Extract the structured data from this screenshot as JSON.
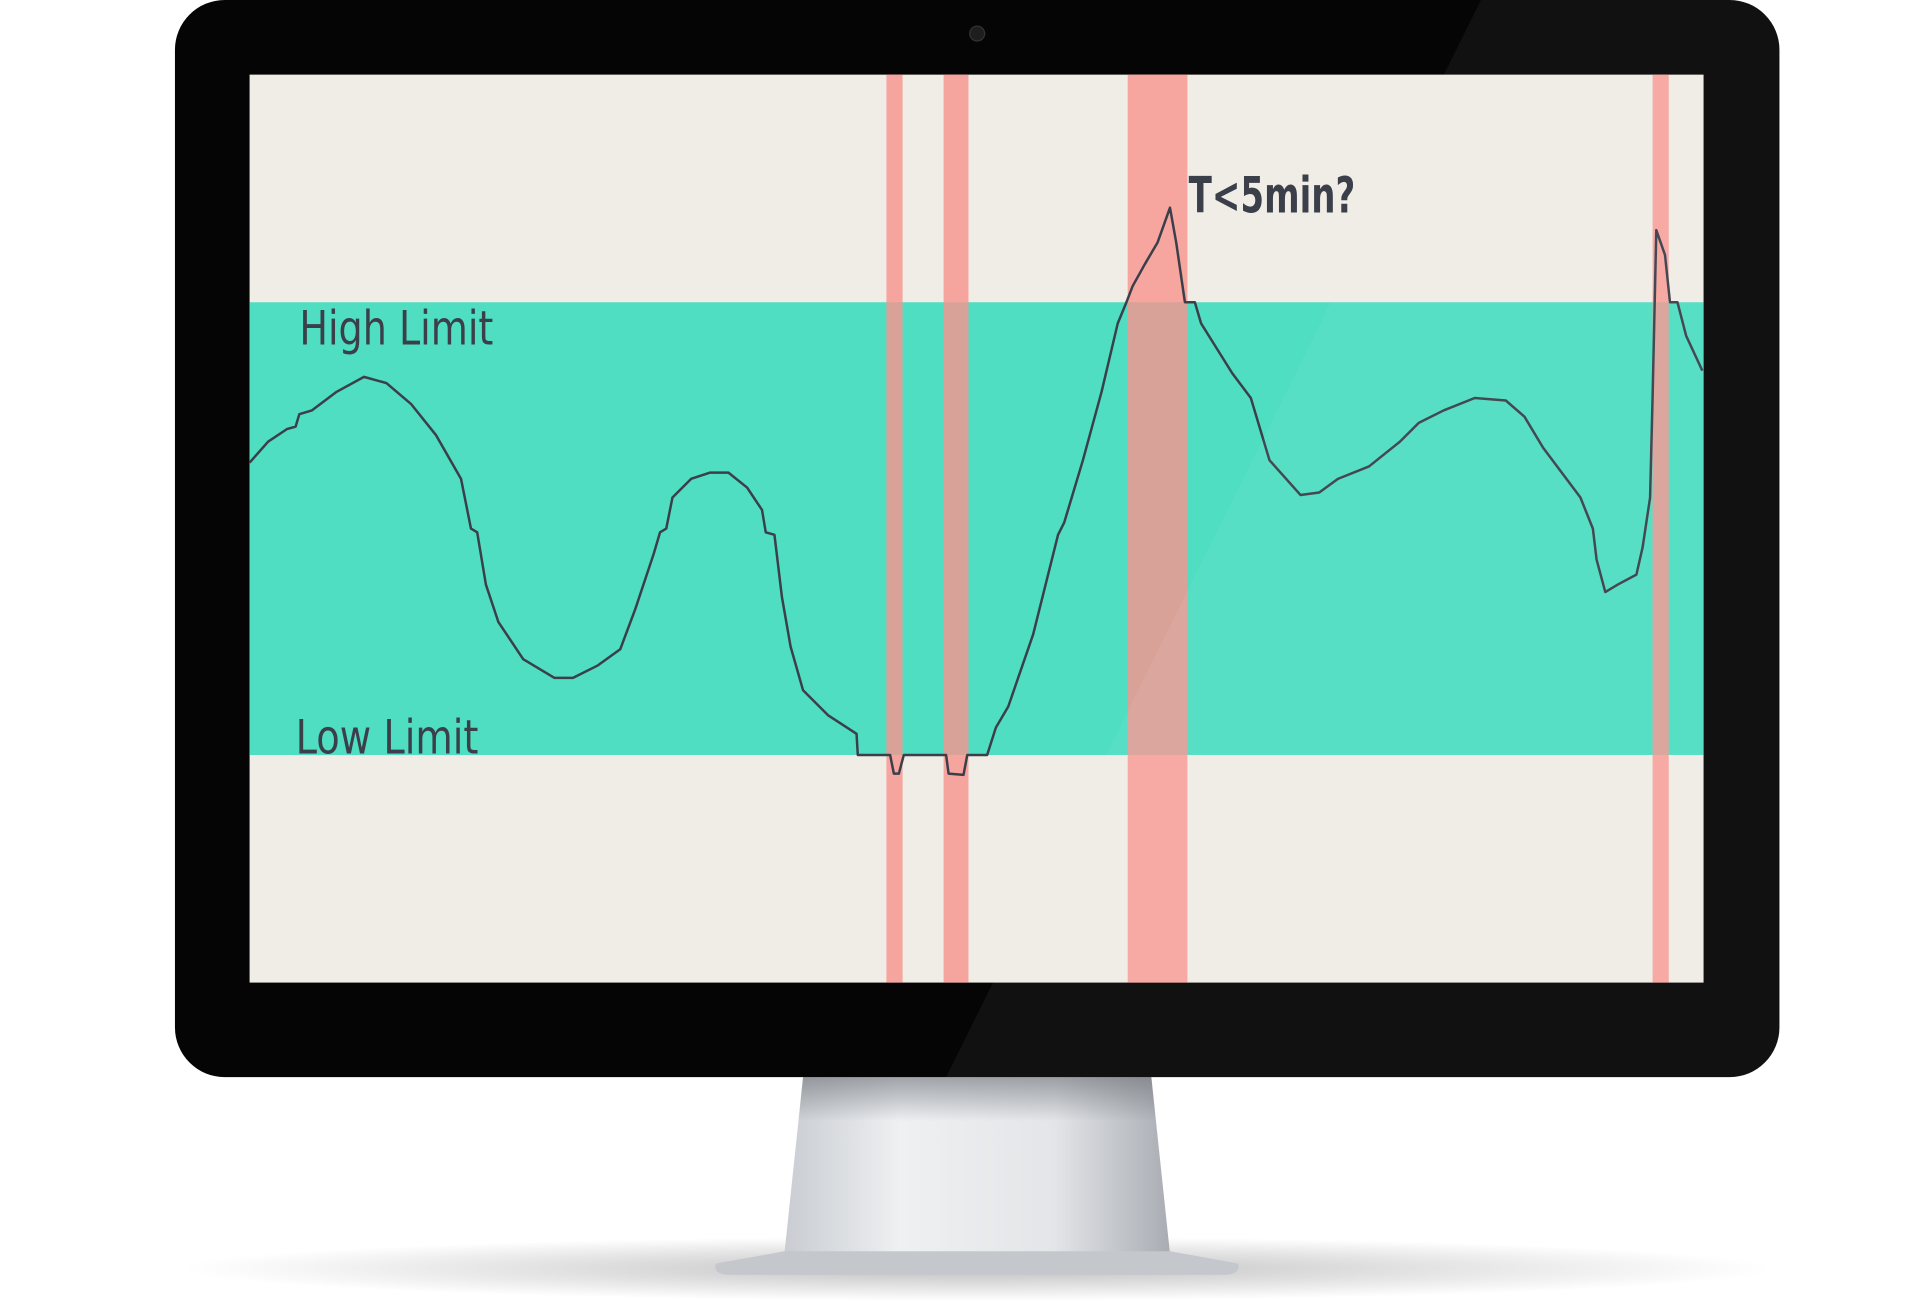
{
  "screen": {
    "high_label": "High Limit",
    "low_label": "Low Limit",
    "annotation": "T<5min?"
  }
}
